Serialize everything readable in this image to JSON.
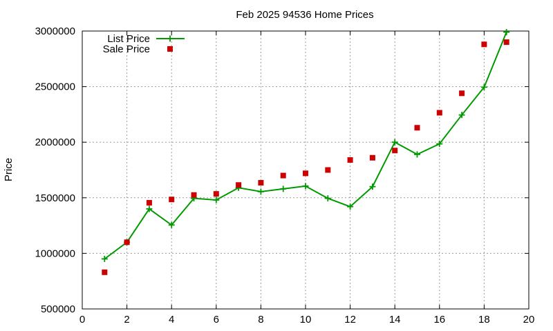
{
  "chart_data": {
    "type": "line",
    "title": "Feb 2025 94536 Home Prices",
    "xlabel": "",
    "ylabel": "Price",
    "xlim": [
      0,
      20
    ],
    "ylim": [
      500000,
      3000000
    ],
    "xticks": [
      0,
      2,
      4,
      6,
      8,
      10,
      12,
      14,
      16,
      18,
      20
    ],
    "yticks": [
      500000,
      1000000,
      1500000,
      2000000,
      2500000,
      3000000
    ],
    "grid": true,
    "legend_position": "top-left",
    "series": [
      {
        "name": "List Price",
        "style": "line+cross",
        "color": "#009900",
        "points": [
          [
            1,
            950000
          ],
          [
            2,
            1100000
          ],
          [
            3,
            1400000
          ],
          [
            4,
            1255000
          ],
          [
            5,
            1495000
          ],
          [
            6,
            1480000
          ],
          [
            7,
            1590000
          ],
          [
            8,
            1555000
          ],
          [
            9,
            1580000
          ],
          [
            10,
            1605000
          ],
          [
            11,
            1495000
          ],
          [
            12,
            1420000
          ],
          [
            13,
            1600000
          ],
          [
            14,
            2000000
          ],
          [
            15,
            1890000
          ],
          [
            16,
            1985000
          ],
          [
            17,
            2245000
          ],
          [
            18,
            2495000
          ],
          [
            19,
            2990000
          ]
        ]
      },
      {
        "name": "Sale Price",
        "style": "square",
        "color": "#cc0000",
        "points": [
          [
            1,
            830000
          ],
          [
            2,
            1100000
          ],
          [
            3,
            1455000
          ],
          [
            4,
            1485000
          ],
          [
            5,
            1525000
          ],
          [
            6,
            1535000
          ],
          [
            7,
            1615000
          ],
          [
            8,
            1635000
          ],
          [
            9,
            1700000
          ],
          [
            10,
            1720000
          ],
          [
            11,
            1750000
          ],
          [
            12,
            1840000
          ],
          [
            13,
            1860000
          ],
          [
            14,
            1925000
          ],
          [
            15,
            2130000
          ],
          [
            16,
            2265000
          ],
          [
            17,
            2440000
          ],
          [
            18,
            2880000
          ],
          [
            19,
            2900000
          ]
        ]
      }
    ]
  }
}
